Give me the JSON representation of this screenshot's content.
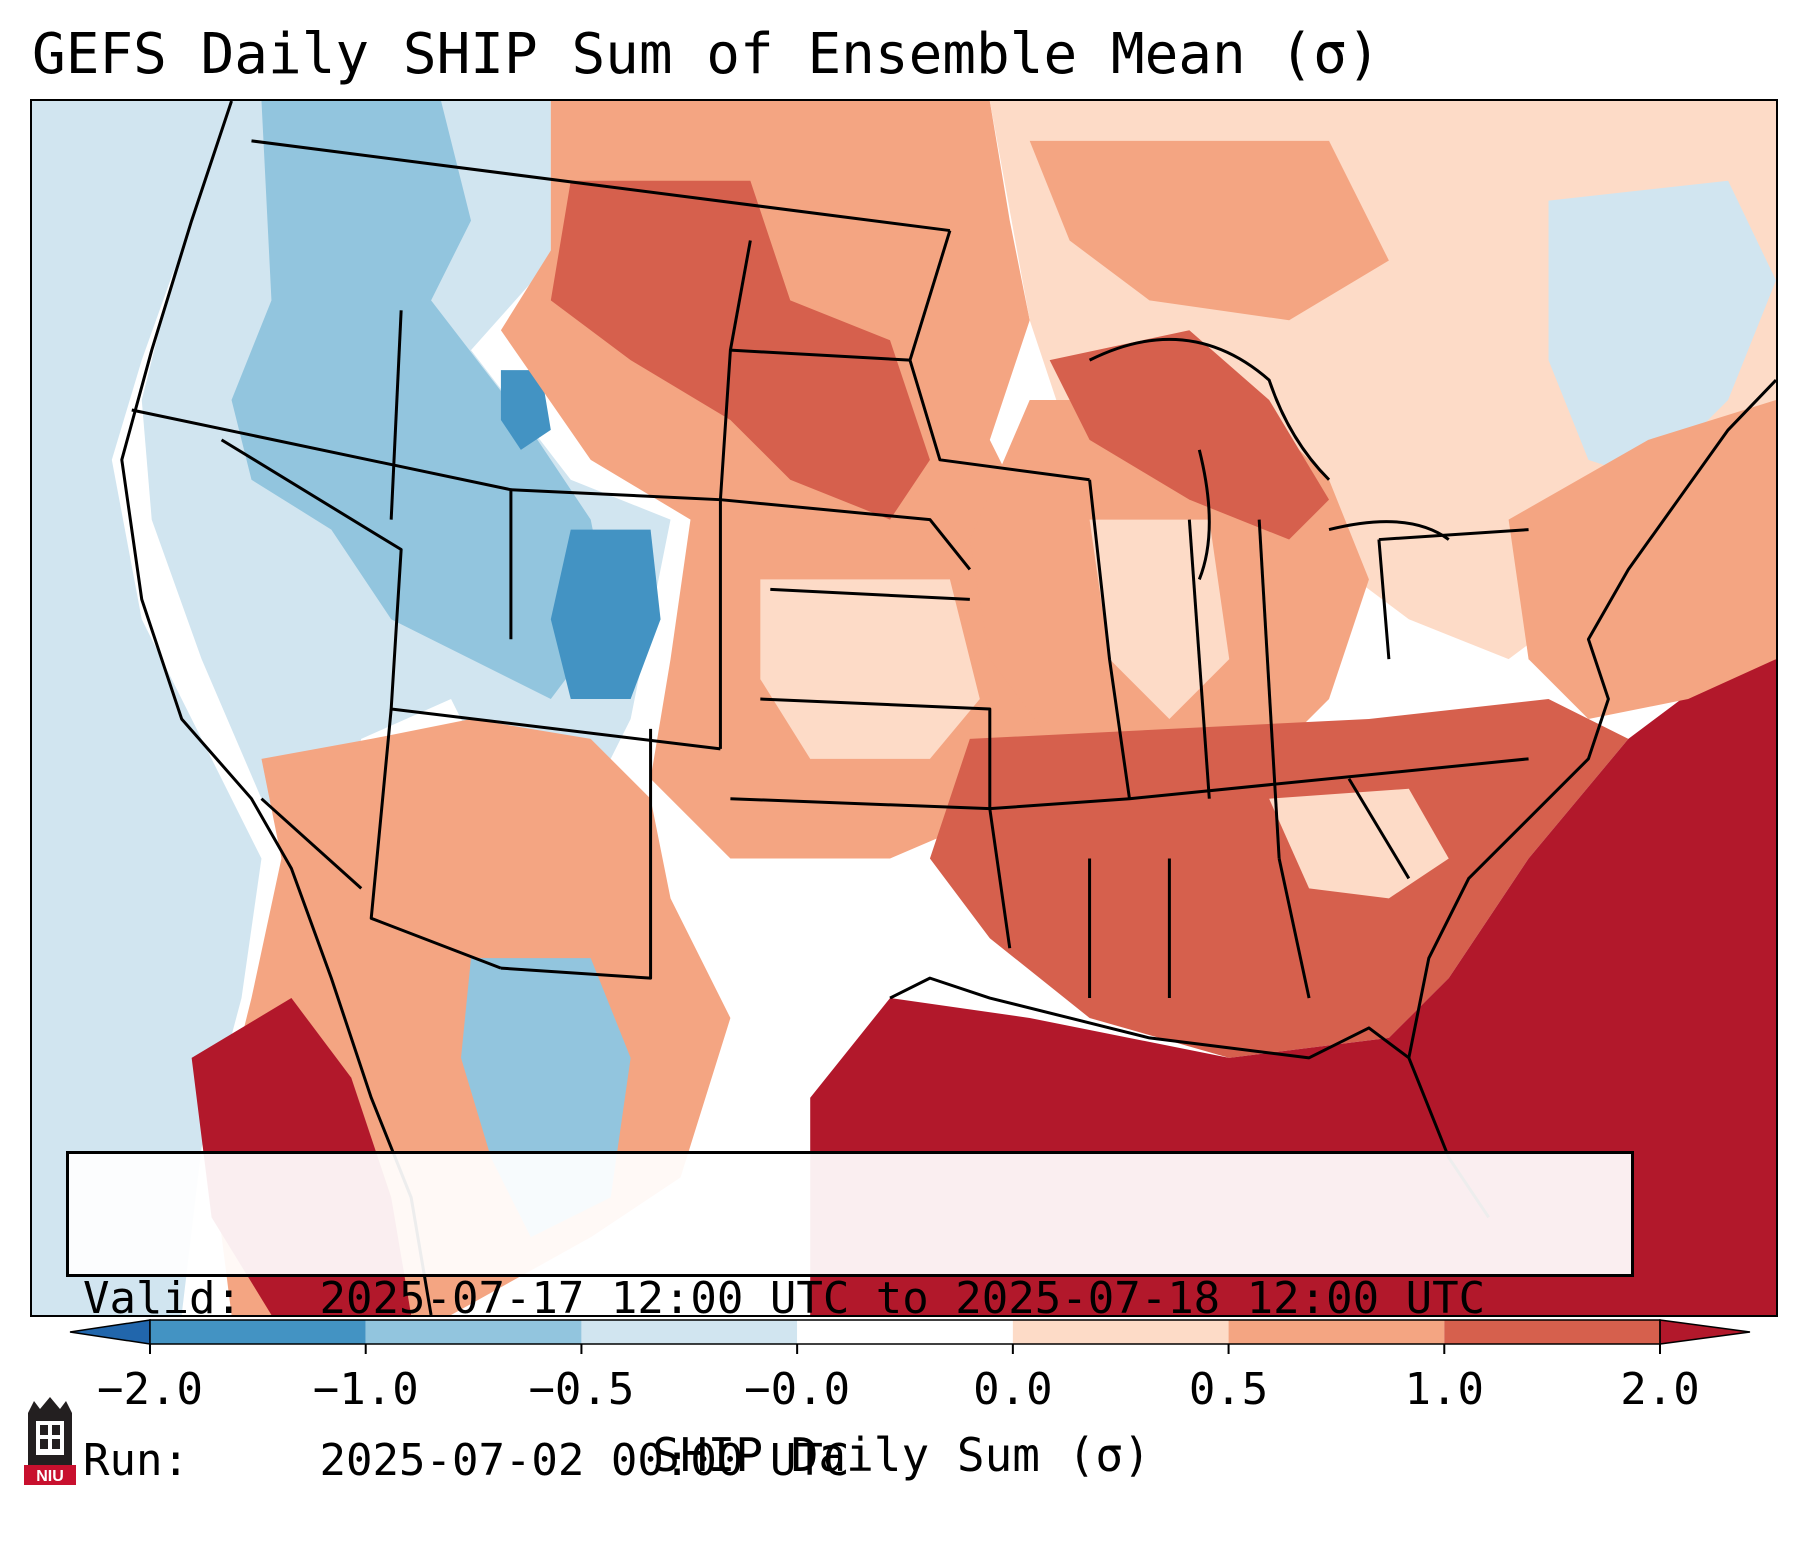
{
  "title": "GEFS Daily SHIP Sum of Ensemble Mean (σ)",
  "info": {
    "valid_label": "Valid:",
    "valid_value": "2025-07-17 12:00 UTC to 2025-07-18 12:00 UTC",
    "run_label": "Run:",
    "run_value": "2025-07-02 00:00 UTC"
  },
  "colorbar": {
    "label": "SHIP Daily Sum (σ)",
    "tick_labels": [
      "−2.0",
      "−1.0",
      "−0.5",
      "−0.0",
      "0.0",
      "0.5",
      "1.0",
      "2.0"
    ],
    "bins": [
      {
        "range": "< -2.0",
        "color": "#2166ac"
      },
      {
        "range": "-2.0 to -1.0",
        "color": "#4393c3"
      },
      {
        "range": "-1.0 to -0.5",
        "color": "#92c5de"
      },
      {
        "range": "-0.5 to -0.0",
        "color": "#d1e5f0"
      },
      {
        "range": "-0.0 to 0.0",
        "color": "#ffffff"
      },
      {
        "range": "0.0 to 0.5",
        "color": "#fddbc7"
      },
      {
        "range": "0.5 to 1.0",
        "color": "#f4a582"
      },
      {
        "range": "1.0 to 2.0",
        "color": "#d6604d"
      },
      {
        "range": "> 2.0",
        "color": "#b2182b"
      }
    ],
    "extend": "both"
  },
  "map": {
    "region": "Contiguous United States",
    "projection": "conic",
    "overlays": [
      "state borders",
      "coastlines",
      "country borders"
    ]
  },
  "logo": {
    "text": "NIU",
    "icon": "niu-tower-logo"
  }
}
